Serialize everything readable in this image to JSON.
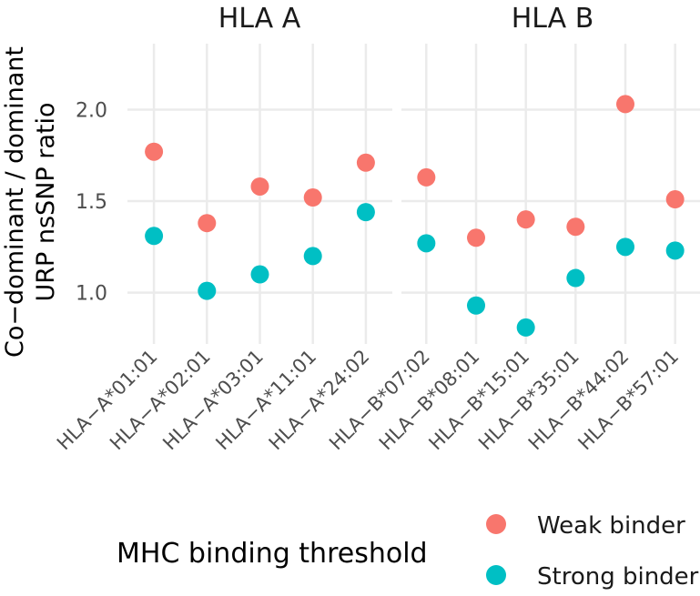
{
  "chart_data": {
    "type": "scatter",
    "ylabel": "Co−dominant / dominant URP nsSNP ratio",
    "ylabel_lines": [
      "Co−dominant / dominant",
      "URP nsSNP ratio"
    ],
    "xlabel": "",
    "yticks": [
      1.0,
      1.5,
      2.0
    ],
    "ytick_labels": [
      "1.0",
      "1.5",
      "2.0"
    ],
    "ylim": [
      0.72,
      2.36
    ],
    "grid": true,
    "legend": {
      "title": "MHC binding threshold",
      "placement": "bottom",
      "entries": [
        {
          "name": "Weak binder",
          "color": "#F8766D"
        },
        {
          "name": "Strong binder",
          "color": "#00BFC4"
        }
      ]
    },
    "panels": [
      {
        "title": "HLA A",
        "categories": [
          "HLA−A*01:01",
          "HLA−A*02:01",
          "HLA−A*03:01",
          "HLA−A*11:01",
          "HLA−A*24:02"
        ],
        "series": [
          {
            "name": "Weak binder",
            "values": [
              1.77,
              1.38,
              1.58,
              1.52,
              1.71
            ]
          },
          {
            "name": "Strong binder",
            "values": [
              1.31,
              1.01,
              1.1,
              1.2,
              1.44
            ]
          }
        ]
      },
      {
        "title": "HLA B",
        "categories": [
          "HLA−B*07:02",
          "HLA−B*08:01",
          "HLA−B*15:01",
          "HLA−B*35:01",
          "HLA−B*44:02",
          "HLA−B*57:01"
        ],
        "series": [
          {
            "name": "Weak binder",
            "values": [
              1.63,
              1.3,
              1.4,
              1.36,
              2.03,
              1.51
            ]
          },
          {
            "name": "Strong binder",
            "values": [
              1.27,
              0.93,
              0.81,
              1.08,
              1.25,
              1.23
            ]
          }
        ]
      }
    ]
  }
}
